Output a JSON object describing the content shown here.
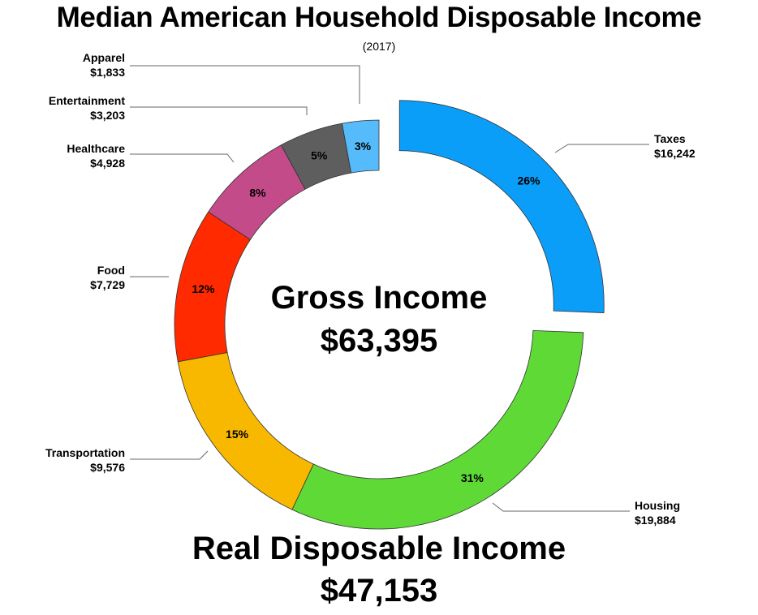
{
  "chart_data": {
    "type": "pie",
    "variant": "donut",
    "title": "Median American Household Disposable Income",
    "subtitle": "(2017)",
    "center_label": "Gross Income",
    "center_value": "$63,395",
    "footer_label": "Real Disposable Income",
    "footer_value": "$47,153",
    "exploded": [
      "Taxes"
    ],
    "slices": [
      {
        "name": "Taxes",
        "value": 16242,
        "value_label": "$16,242",
        "percent_label": "26%",
        "color": "#0a9ef9"
      },
      {
        "name": "Housing",
        "value": 19884,
        "value_label": "$19,884",
        "percent_label": "31%",
        "color": "#5fd936"
      },
      {
        "name": "Transportation",
        "value": 9576,
        "value_label": "$9,576",
        "percent_label": "15%",
        "color": "#f8b800"
      },
      {
        "name": "Food",
        "value": 7729,
        "value_label": "$7,729",
        "percent_label": "12%",
        "color": "#ff2a00"
      },
      {
        "name": "Healthcare",
        "value": 4928,
        "value_label": "$4,928",
        "percent_label": "8%",
        "color": "#c44b89"
      },
      {
        "name": "Entertainment",
        "value": 3203,
        "value_label": "$3,203",
        "percent_label": "5%",
        "color": "#5e5e5e"
      },
      {
        "name": "Apparel",
        "value": 1833,
        "value_label": "$1,833",
        "percent_label": "3%",
        "color": "#55bbfa"
      }
    ]
  }
}
